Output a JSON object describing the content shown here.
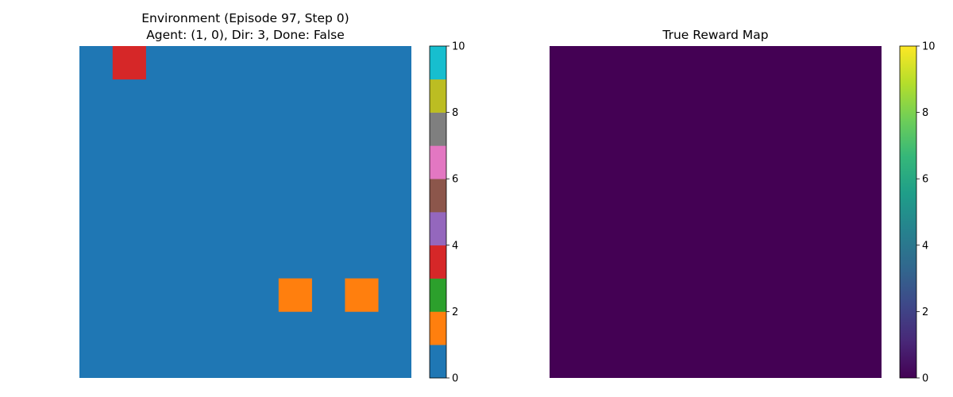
{
  "chart_data": [
    {
      "type": "heatmap",
      "title_line1": "Environment (Episode 97, Step 0)",
      "title_line2": "Agent: (1, 0), Dir: 3, Done: False",
      "grid_size": 10,
      "background_value": 0,
      "cells": [
        {
          "row": 0,
          "col": 1,
          "value": 3.5,
          "color": "#d62728"
        },
        {
          "row": 7,
          "col": 6,
          "value": 1.5,
          "color": "#ff7f0e"
        },
        {
          "row": 7,
          "col": 8,
          "value": 1.5,
          "color": "#ff7f0e"
        }
      ],
      "background_color": "#1f77b4",
      "colormap": "tab10",
      "colormap_colors": [
        "#1f77b4",
        "#ff7f0e",
        "#2ca02c",
        "#d62728",
        "#9467bd",
        "#8c564b",
        "#e377c2",
        "#7f7f7f",
        "#bcbd22",
        "#17becf"
      ],
      "colorbar_range": [
        0,
        10
      ],
      "colorbar_ticks": [
        "0",
        "2",
        "4",
        "6",
        "8",
        "10"
      ]
    },
    {
      "type": "heatmap",
      "title": "True Reward Map",
      "grid_size": 10,
      "uniform_value": 0,
      "fill_color": "#440154",
      "colormap": "viridis",
      "colormap_stops": [
        "#440154",
        "#482878",
        "#3e4989",
        "#31688e",
        "#26828e",
        "#1f9e89",
        "#35b779",
        "#6ece58",
        "#b5de2b",
        "#fde725"
      ],
      "colorbar_range": [
        0,
        10
      ],
      "colorbar_ticks": [
        "0",
        "2",
        "4",
        "6",
        "8",
        "10"
      ]
    }
  ]
}
